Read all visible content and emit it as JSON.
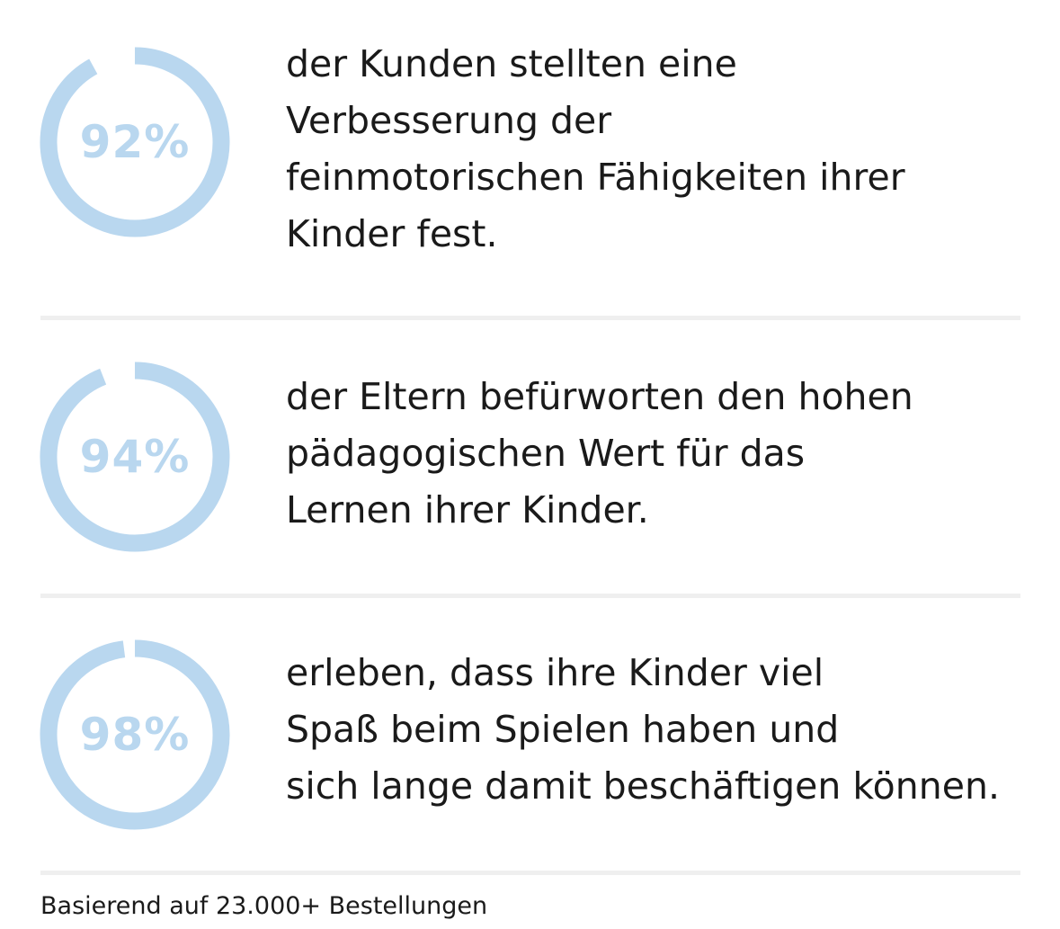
{
  "stats": [
    {
      "percent_label": "92%",
      "percent": 92,
      "lines": [
        "der Kunden stellten eine",
        "Verbesserung der",
        "feinmotorischen Fähigkeiten ihrer",
        "Kinder fest."
      ]
    },
    {
      "percent_label": "94%",
      "percent": 94,
      "lines": [
        "der Eltern befürworten den hohen",
        "pädagogischen Wert für das",
        "Lernen ihrer Kinder."
      ]
    },
    {
      "percent_label": "98%",
      "percent": 98,
      "lines": [
        "erleben, dass ihre Kinder viel",
        "Spaß beim Spielen haben und",
        "sich lange damit beschäftigen können."
      ]
    }
  ],
  "footnote": "Basierend auf 23.000+ Bestellungen",
  "colors": {
    "ring": "#b9d7ef",
    "text": "#1a1a1a",
    "divider": "#efefef"
  }
}
